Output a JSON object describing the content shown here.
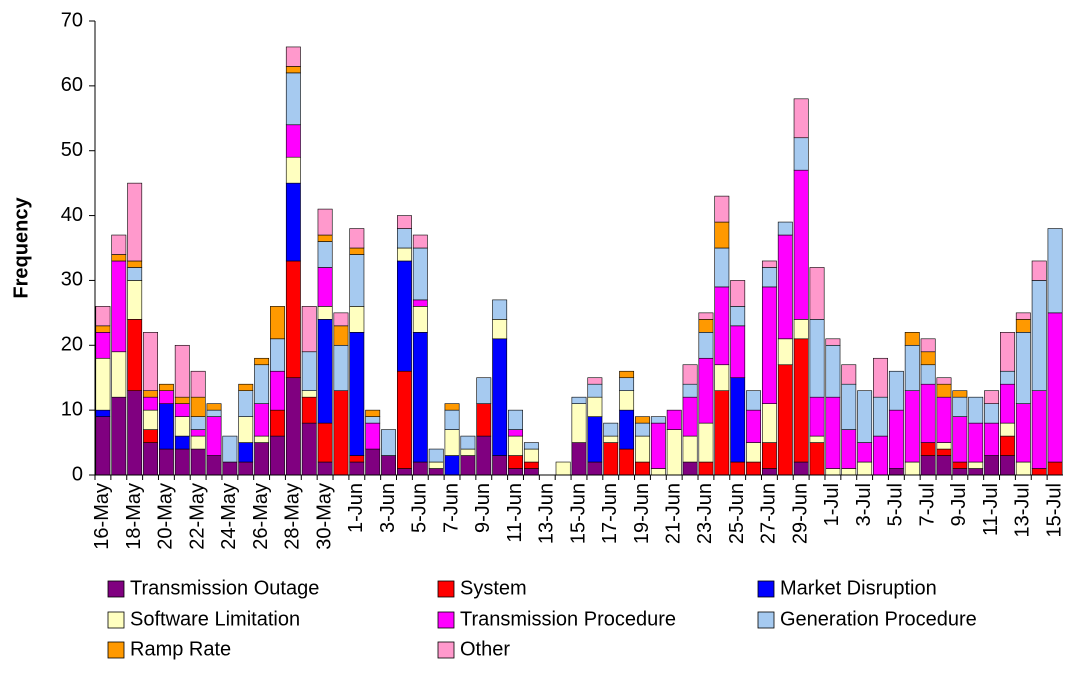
{
  "chart_data": {
    "type": "stacked_bar",
    "y_label": "Frequency",
    "categories": [
      "16-May",
      null,
      "18-May",
      null,
      "20-May",
      null,
      "22-May",
      null,
      "24-May",
      null,
      "26-May",
      null,
      "28-May",
      null,
      "30-May",
      null,
      "1-Jun",
      null,
      "3-Jun",
      null,
      "5-Jun",
      null,
      "7-Jun",
      null,
      "9-Jun",
      null,
      "11-Jun",
      null,
      "13-Jun",
      null,
      "15-Jun",
      null,
      "17-Jun",
      null,
      "19-Jun",
      null,
      "21-Jun",
      null,
      "23-Jun",
      null,
      "25-Jun",
      null,
      "27-Jun",
      null,
      "29-Jun",
      null,
      "1-Jul",
      null,
      "3-Jul",
      null,
      "5-Jul",
      null,
      "7-Jul",
      null,
      "9-Jul",
      null,
      "11-Jul",
      null,
      "13-Jul",
      null,
      "15-Jul"
    ],
    "series": [
      {
        "name": "Transmission Outage",
        "color": "#800080",
        "values": [
          9,
          12,
          13,
          5,
          4,
          4,
          4,
          3,
          2,
          2,
          5,
          6,
          15,
          8,
          2,
          0,
          2,
          4,
          3,
          1,
          2,
          1,
          0,
          3,
          6,
          3,
          1,
          1,
          0,
          0,
          5,
          2,
          0,
          0,
          0,
          0,
          0,
          2,
          0,
          0,
          0,
          0,
          1,
          0,
          2,
          0,
          0,
          0,
          0,
          0,
          1,
          0,
          3,
          3,
          1,
          1,
          3,
          3,
          0,
          0,
          0
        ]
      },
      {
        "name": "System",
        "color": "#ff0000",
        "values": [
          0,
          0,
          11,
          2,
          0,
          0,
          0,
          0,
          0,
          0,
          0,
          4,
          18,
          4,
          6,
          13,
          1,
          0,
          0,
          15,
          0,
          0,
          0,
          0,
          5,
          0,
          2,
          1,
          0,
          0,
          0,
          0,
          5,
          4,
          2,
          0,
          0,
          0,
          2,
          13,
          2,
          2,
          4,
          17,
          19,
          5,
          0,
          0,
          0,
          0,
          0,
          0,
          2,
          1,
          1,
          0,
          0,
          3,
          0,
          1,
          2
        ]
      },
      {
        "name": "Market Disruption",
        "color": "#0000ff",
        "values": [
          1,
          0,
          0,
          0,
          7,
          2,
          0,
          0,
          0,
          3,
          0,
          0,
          12,
          0,
          16,
          0,
          19,
          0,
          0,
          17,
          20,
          0,
          3,
          0,
          0,
          18,
          0,
          0,
          0,
          0,
          0,
          7,
          0,
          6,
          0,
          0,
          0,
          0,
          0,
          0,
          13,
          0,
          0,
          0,
          0,
          0,
          0,
          0,
          0,
          0,
          0,
          0,
          0,
          0,
          0,
          0,
          0,
          0,
          0,
          0,
          0
        ]
      },
      {
        "name": "Software Limitation",
        "color": "#ffffc0",
        "values": [
          8,
          7,
          6,
          3,
          0,
          3,
          2,
          0,
          0,
          4,
          1,
          0,
          4,
          1,
          2,
          0,
          4,
          0,
          0,
          2,
          4,
          1,
          4,
          1,
          0,
          3,
          3,
          2,
          0,
          2,
          6,
          3,
          1,
          3,
          4,
          1,
          7,
          4,
          6,
          4,
          0,
          3,
          6,
          4,
          3,
          1,
          1,
          1,
          2,
          0,
          0,
          2,
          0,
          1,
          0,
          1,
          0,
          2,
          2,
          0,
          0
        ]
      },
      {
        "name": "Transmission Procedure",
        "color": "#ff00ff",
        "values": [
          4,
          14,
          0,
          2,
          2,
          2,
          1,
          6,
          0,
          0,
          5,
          6,
          5,
          0,
          6,
          0,
          0,
          4,
          0,
          0,
          1,
          0,
          0,
          0,
          0,
          0,
          1,
          0,
          0,
          0,
          0,
          0,
          0,
          0,
          0,
          7,
          3,
          6,
          10,
          12,
          8,
          5,
          18,
          16,
          23,
          6,
          11,
          6,
          3,
          6,
          9,
          11,
          9,
          7,
          7,
          6,
          5,
          6,
          9,
          12,
          23
        ]
      },
      {
        "name": "Generation Procedure",
        "color": "#a6caf0",
        "values": [
          0,
          0,
          2,
          0,
          0,
          0,
          2,
          1,
          4,
          4,
          6,
          5,
          8,
          6,
          4,
          7,
          8,
          1,
          4,
          3,
          8,
          2,
          3,
          2,
          4,
          3,
          3,
          1,
          0,
          0,
          1,
          2,
          2,
          2,
          2,
          1,
          0,
          2,
          4,
          6,
          3,
          3,
          3,
          2,
          5,
          12,
          8,
          7,
          8,
          6,
          6,
          7,
          3,
          0,
          3,
          4,
          3,
          2,
          11,
          17,
          13
        ]
      },
      {
        "name": "Ramp Rate",
        "color": "#ff9900",
        "values": [
          1,
          1,
          1,
          1,
          1,
          1,
          3,
          1,
          0,
          1,
          1,
          5,
          1,
          0,
          1,
          3,
          1,
          1,
          0,
          0,
          0,
          0,
          1,
          0,
          0,
          0,
          0,
          0,
          0,
          0,
          0,
          0,
          0,
          1,
          1,
          0,
          0,
          0,
          2,
          4,
          0,
          0,
          0,
          0,
          0,
          0,
          0,
          0,
          0,
          0,
          0,
          2,
          2,
          2,
          1,
          0,
          0,
          0,
          2,
          0,
          0
        ]
      },
      {
        "name": "Other",
        "color": "#ff99cc",
        "values": [
          3,
          3,
          12,
          9,
          0,
          8,
          4,
          0,
          0,
          0,
          0,
          0,
          3,
          7,
          4,
          2,
          3,
          0,
          0,
          2,
          2,
          0,
          0,
          0,
          0,
          0,
          0,
          0,
          0,
          0,
          0,
          1,
          0,
          0,
          0,
          0,
          0,
          3,
          1,
          4,
          4,
          0,
          1,
          0,
          6,
          8,
          1,
          3,
          0,
          6,
          0,
          0,
          2,
          1,
          0,
          0,
          2,
          6,
          1,
          3,
          0
        ]
      }
    ],
    "ylim": [
      0,
      70
    ],
    "yticks": [
      0,
      10,
      20,
      30,
      40,
      50,
      60,
      70
    ]
  }
}
